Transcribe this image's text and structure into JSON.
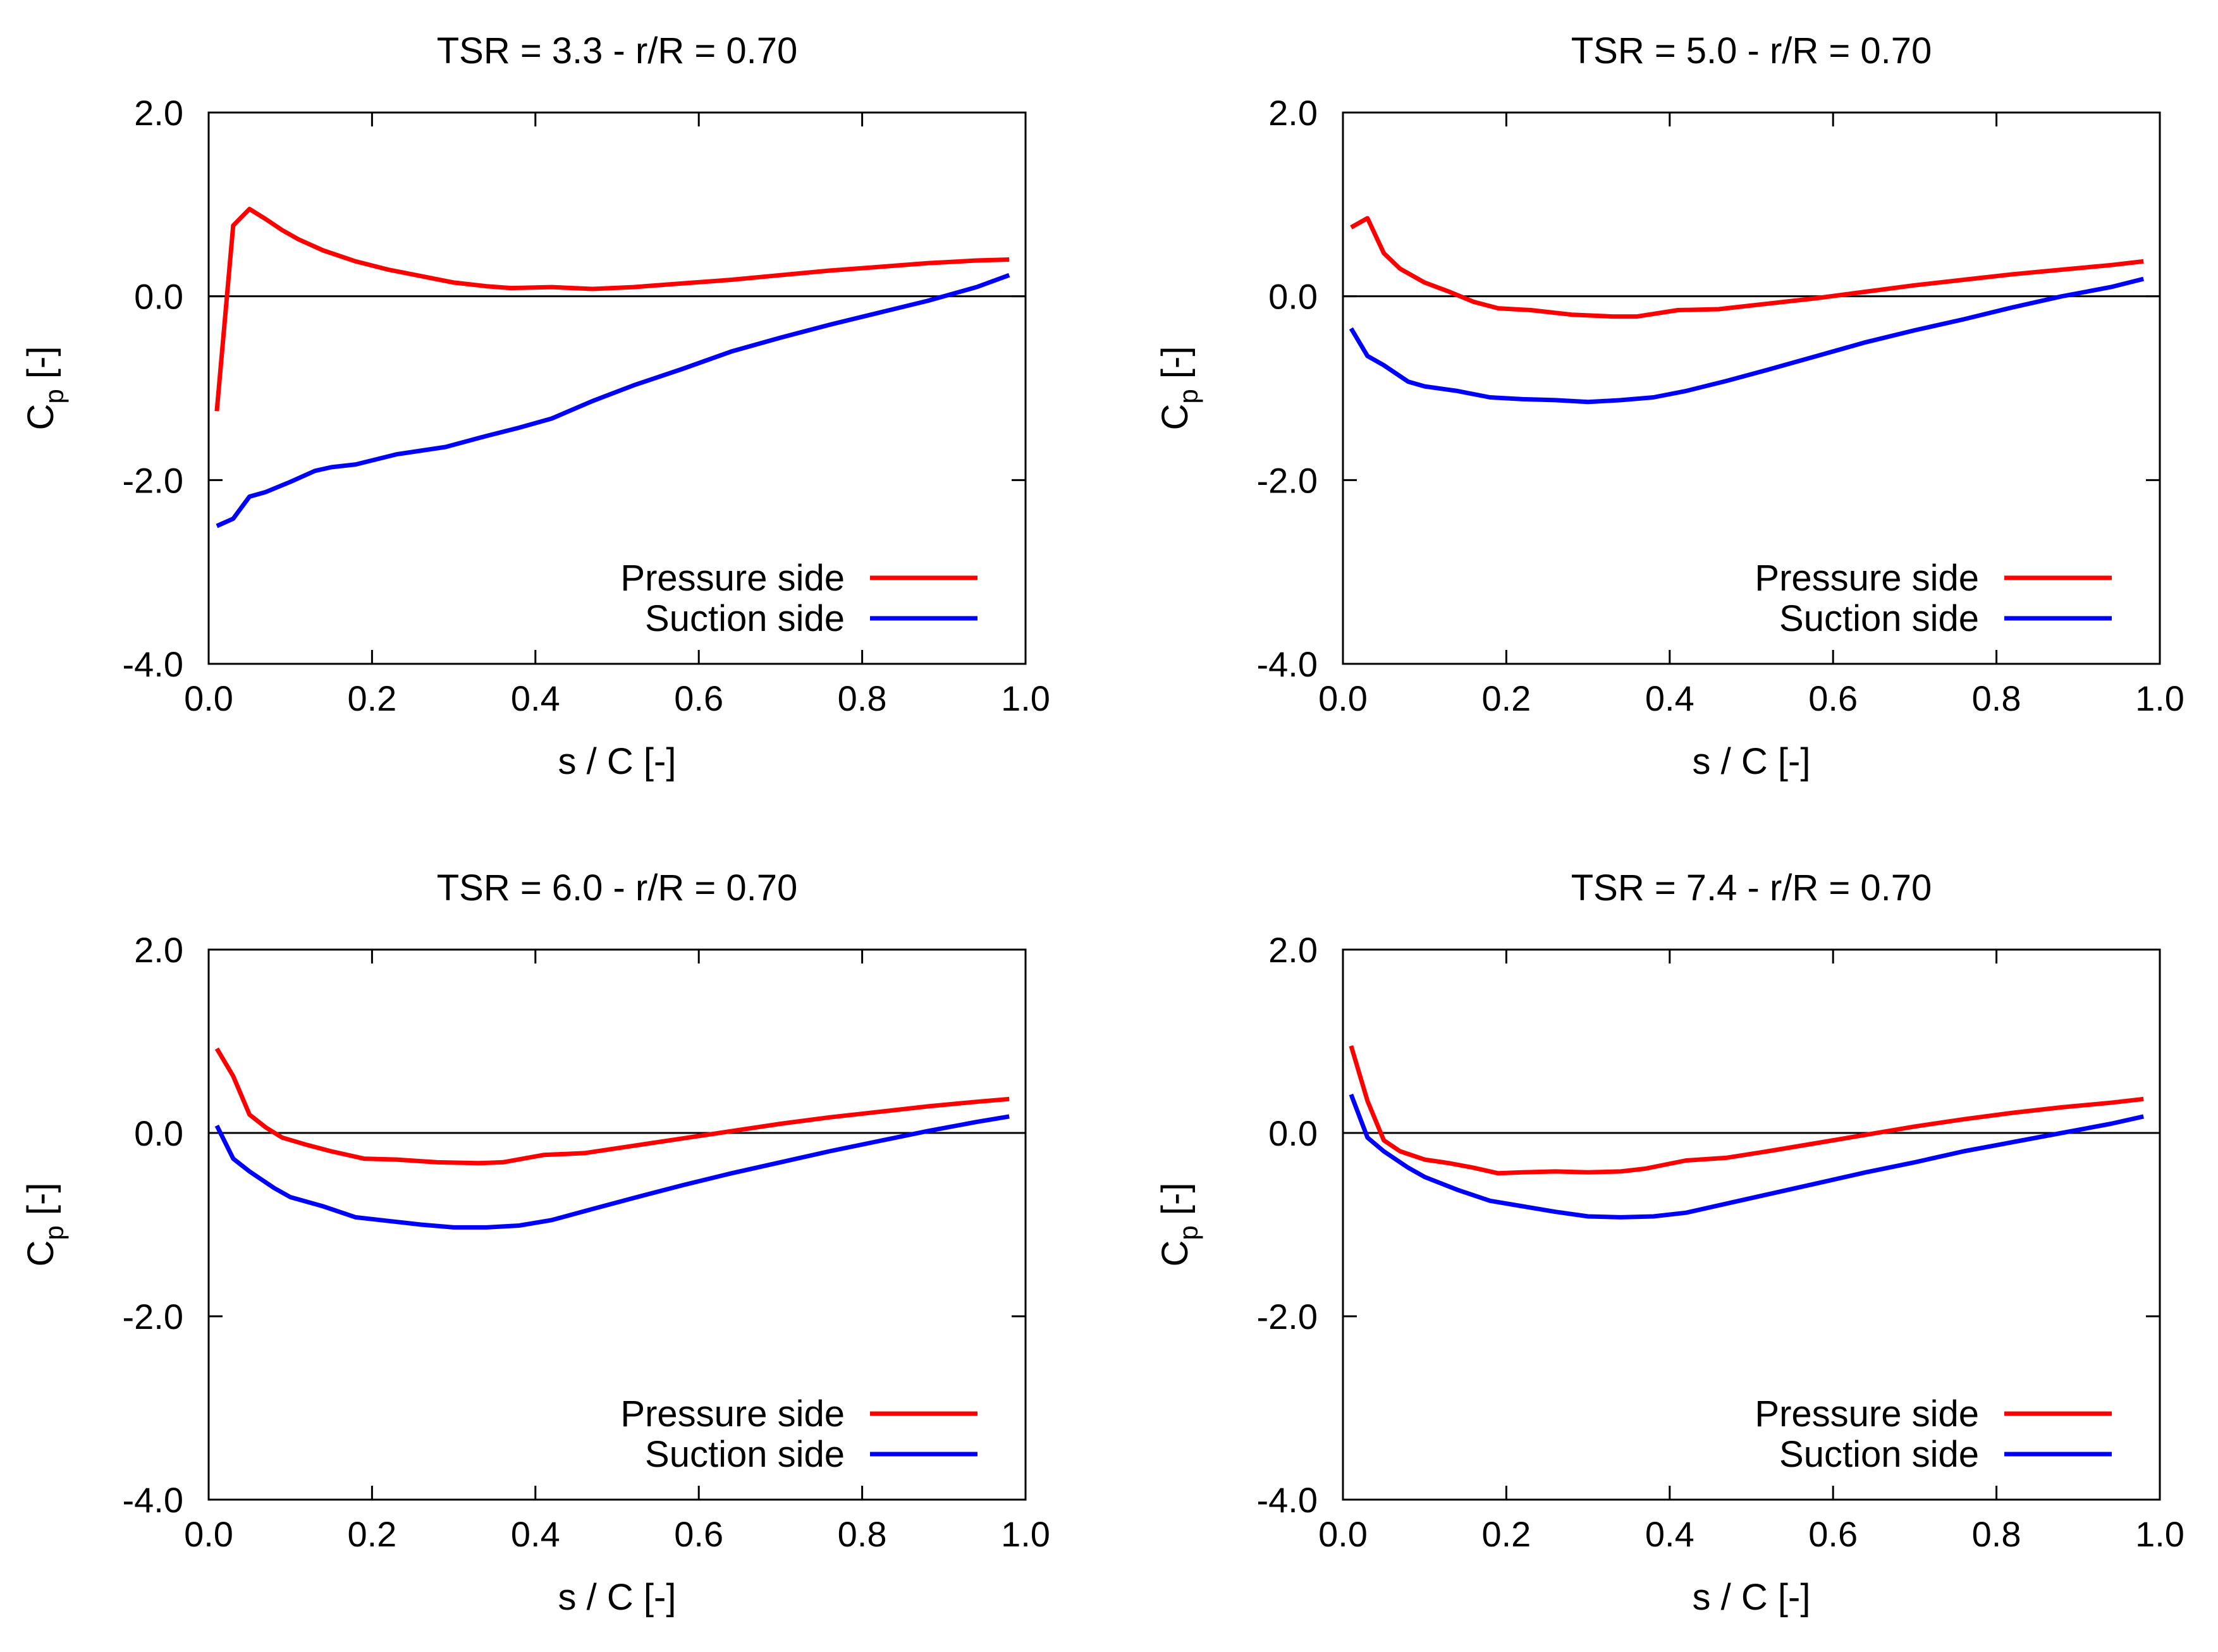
{
  "colors": {
    "pressure": "#ff0000",
    "suction": "#0000ff",
    "axis": "#000000"
  },
  "chart_data": [
    {
      "type": "line",
      "title": "TSR = 3.3 - r/R = 0.70",
      "xlabel": "s / C [-]",
      "ylabel_main": "C",
      "ylabel_sub": "p",
      "ylabel_tail": " [-]",
      "xlim": [
        0.0,
        1.0
      ],
      "ylim": [
        -4.0,
        2.0
      ],
      "xticks": [
        "0.0",
        "0.2",
        "0.4",
        "0.6",
        "0.8",
        "1.0"
      ],
      "yticks": [
        "-4.0",
        "-2.0",
        "0.0",
        "2.0"
      ],
      "zero_line": true,
      "legend_position": "bottom-right",
      "series": [
        {
          "name": "Pressure side",
          "color": "pressure",
          "x": [
            0.01,
            0.03,
            0.05,
            0.07,
            0.09,
            0.11,
            0.14,
            0.18,
            0.22,
            0.26,
            0.3,
            0.34,
            0.37,
            0.42,
            0.47,
            0.52,
            0.58,
            0.64,
            0.7,
            0.76,
            0.82,
            0.88,
            0.94,
            0.98
          ],
          "y": [
            -1.25,
            0.77,
            0.95,
            0.84,
            0.72,
            0.62,
            0.5,
            0.38,
            0.29,
            0.22,
            0.15,
            0.11,
            0.09,
            0.1,
            0.08,
            0.1,
            0.14,
            0.18,
            0.23,
            0.28,
            0.32,
            0.36,
            0.39,
            0.4
          ]
        },
        {
          "name": "Suction side",
          "color": "suction",
          "x": [
            0.01,
            0.03,
            0.05,
            0.07,
            0.1,
            0.13,
            0.15,
            0.18,
            0.23,
            0.29,
            0.34,
            0.38,
            0.42,
            0.47,
            0.52,
            0.58,
            0.64,
            0.7,
            0.76,
            0.82,
            0.88,
            0.94,
            0.98
          ],
          "y": [
            -2.5,
            -2.42,
            -2.18,
            -2.13,
            -2.02,
            -1.9,
            -1.86,
            -1.83,
            -1.72,
            -1.64,
            -1.52,
            -1.43,
            -1.33,
            -1.14,
            -0.97,
            -0.79,
            -0.6,
            -0.45,
            -0.31,
            -0.18,
            -0.05,
            0.1,
            0.23
          ]
        }
      ]
    },
    {
      "type": "line",
      "title": "TSR = 5.0 - r/R = 0.70",
      "xlabel": "s / C [-]",
      "ylabel_main": "C",
      "ylabel_sub": "p",
      "ylabel_tail": " [-]",
      "xlim": [
        0.0,
        1.0
      ],
      "ylim": [
        -4.0,
        2.0
      ],
      "xticks": [
        "0.0",
        "0.2",
        "0.4",
        "0.6",
        "0.8",
        "1.0"
      ],
      "yticks": [
        "-4.0",
        "-2.0",
        "0.0",
        "2.0"
      ],
      "zero_line": true,
      "legend_position": "bottom-right",
      "series": [
        {
          "name": "Pressure side",
          "color": "pressure",
          "x": [
            0.01,
            0.03,
            0.05,
            0.07,
            0.1,
            0.13,
            0.16,
            0.19,
            0.23,
            0.28,
            0.33,
            0.36,
            0.41,
            0.46,
            0.52,
            0.58,
            0.64,
            0.7,
            0.76,
            0.82,
            0.88,
            0.94,
            0.98
          ],
          "y": [
            0.75,
            0.85,
            0.47,
            0.3,
            0.15,
            0.05,
            -0.06,
            -0.13,
            -0.15,
            -0.2,
            -0.22,
            -0.22,
            -0.15,
            -0.14,
            -0.08,
            -0.02,
            0.05,
            0.12,
            0.18,
            0.24,
            0.29,
            0.34,
            0.38
          ]
        },
        {
          "name": "Suction side",
          "color": "suction",
          "x": [
            0.01,
            0.03,
            0.05,
            0.08,
            0.1,
            0.14,
            0.18,
            0.22,
            0.26,
            0.3,
            0.34,
            0.38,
            0.42,
            0.47,
            0.52,
            0.58,
            0.64,
            0.7,
            0.76,
            0.82,
            0.88,
            0.94,
            0.98
          ],
          "y": [
            -0.35,
            -0.65,
            -0.75,
            -0.93,
            -0.98,
            -1.03,
            -1.1,
            -1.12,
            -1.13,
            -1.15,
            -1.13,
            -1.1,
            -1.03,
            -0.92,
            -0.8,
            -0.65,
            -0.5,
            -0.37,
            -0.25,
            -0.12,
            0.0,
            0.1,
            0.19
          ]
        }
      ]
    },
    {
      "type": "line",
      "title": "TSR = 6.0 - r/R = 0.70",
      "xlabel": "s / C [-]",
      "ylabel_main": "C",
      "ylabel_sub": "p",
      "ylabel_tail": " [-]",
      "xlim": [
        0.0,
        1.0
      ],
      "ylim": [
        -4.0,
        2.0
      ],
      "xticks": [
        "0.0",
        "0.2",
        "0.4",
        "0.6",
        "0.8",
        "1.0"
      ],
      "yticks": [
        "-4.0",
        "-2.0",
        "0.0",
        "2.0"
      ],
      "zero_line": true,
      "legend_position": "bottom-right",
      "series": [
        {
          "name": "Pressure side",
          "color": "pressure",
          "x": [
            0.01,
            0.03,
            0.05,
            0.07,
            0.09,
            0.12,
            0.15,
            0.19,
            0.23,
            0.28,
            0.33,
            0.36,
            0.41,
            0.46,
            0.52,
            0.58,
            0.64,
            0.7,
            0.76,
            0.82,
            0.88,
            0.94,
            0.98
          ],
          "y": [
            0.92,
            0.62,
            0.2,
            0.06,
            -0.05,
            -0.13,
            -0.2,
            -0.28,
            -0.29,
            -0.32,
            -0.33,
            -0.32,
            -0.24,
            -0.22,
            -0.14,
            -0.06,
            0.02,
            0.1,
            0.17,
            0.23,
            0.29,
            0.34,
            0.37
          ]
        },
        {
          "name": "Suction side",
          "color": "suction",
          "x": [
            0.01,
            0.03,
            0.05,
            0.08,
            0.1,
            0.14,
            0.18,
            0.22,
            0.26,
            0.3,
            0.34,
            0.38,
            0.42,
            0.47,
            0.52,
            0.58,
            0.64,
            0.7,
            0.76,
            0.82,
            0.88,
            0.94,
            0.98
          ],
          "y": [
            0.08,
            -0.28,
            -0.42,
            -0.6,
            -0.7,
            -0.8,
            -0.92,
            -0.96,
            -1.0,
            -1.03,
            -1.03,
            -1.01,
            -0.95,
            -0.83,
            -0.71,
            -0.57,
            -0.44,
            -0.32,
            -0.2,
            -0.09,
            0.02,
            0.12,
            0.18
          ]
        }
      ]
    },
    {
      "type": "line",
      "title": "TSR = 7.4 - r/R = 0.70",
      "xlabel": "s / C [-]",
      "ylabel_main": "C",
      "ylabel_sub": "p",
      "ylabel_tail": " [-]",
      "xlim": [
        0.0,
        1.0
      ],
      "ylim": [
        -4.0,
        2.0
      ],
      "xticks": [
        "0.0",
        "0.2",
        "0.4",
        "0.6",
        "0.8",
        "1.0"
      ],
      "yticks": [
        "-4.0",
        "-2.0",
        "0.0",
        "2.0"
      ],
      "zero_line": true,
      "legend_position": "bottom-right",
      "series": [
        {
          "name": "Pressure side",
          "color": "pressure",
          "x": [
            0.01,
            0.03,
            0.05,
            0.07,
            0.1,
            0.13,
            0.16,
            0.19,
            0.22,
            0.26,
            0.3,
            0.34,
            0.37,
            0.42,
            0.47,
            0.52,
            0.58,
            0.64,
            0.7,
            0.76,
            0.82,
            0.88,
            0.94,
            0.98
          ],
          "y": [
            0.95,
            0.35,
            -0.08,
            -0.2,
            -0.29,
            -0.33,
            -0.38,
            -0.44,
            -0.43,
            -0.42,
            -0.43,
            -0.42,
            -0.39,
            -0.3,
            -0.27,
            -0.2,
            -0.11,
            -0.02,
            0.07,
            0.15,
            0.22,
            0.28,
            0.33,
            0.37
          ]
        },
        {
          "name": "Suction side",
          "color": "suction",
          "x": [
            0.01,
            0.03,
            0.05,
            0.08,
            0.1,
            0.14,
            0.18,
            0.22,
            0.26,
            0.3,
            0.34,
            0.38,
            0.42,
            0.47,
            0.52,
            0.58,
            0.64,
            0.7,
            0.76,
            0.82,
            0.88,
            0.94,
            0.98
          ],
          "y": [
            0.42,
            -0.05,
            -0.2,
            -0.38,
            -0.48,
            -0.62,
            -0.74,
            -0.8,
            -0.86,
            -0.91,
            -0.92,
            -0.91,
            -0.87,
            -0.77,
            -0.67,
            -0.55,
            -0.43,
            -0.32,
            -0.2,
            -0.1,
            0.0,
            0.1,
            0.18
          ]
        }
      ]
    }
  ]
}
